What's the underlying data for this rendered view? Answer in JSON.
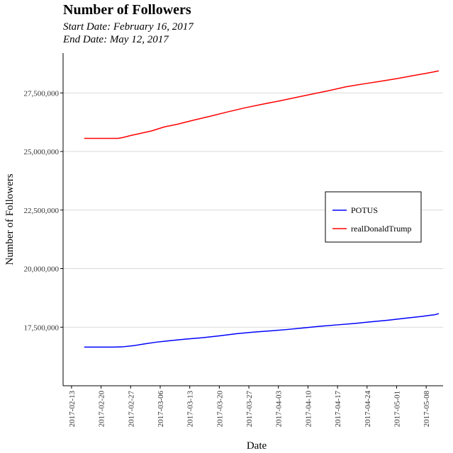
{
  "chart_data": {
    "type": "line",
    "title": "Number of Followers",
    "subtitle_lines": [
      "Start Date:  February 16, 2017",
      "End Date:  May 12, 2017"
    ],
    "xlabel": "Date",
    "ylabel": "Number of Followers",
    "x_domain": [
      "2017-02-11",
      "2017-05-12"
    ],
    "x_ticks": [
      "2017-02-13",
      "2017-02-20",
      "2017-02-27",
      "2017-03-06",
      "2017-03-13",
      "2017-03-20",
      "2017-03-27",
      "2017-04-03",
      "2017-04-10",
      "2017-04-17",
      "2017-04-24",
      "2017-05-01",
      "2017-05-08"
    ],
    "ylim": [
      15000000,
      29200000
    ],
    "y_ticks": [
      17500000,
      20000000,
      22500000,
      25000000,
      27500000
    ],
    "y_tick_labels": [
      "17,500,000",
      "20,000,000",
      "22,500,000",
      "25,000,000",
      "27,500,000"
    ],
    "grid": "horizontal",
    "legend_position": "right",
    "series": [
      {
        "name": "POTUS",
        "color": "#0000ff",
        "points": [
          [
            "2017-02-16",
            16650000
          ],
          [
            "2017-02-20",
            16650000
          ],
          [
            "2017-02-23",
            16650000
          ],
          [
            "2017-02-25",
            16660000
          ],
          [
            "2017-02-28",
            16720000
          ],
          [
            "2017-03-02",
            16780000
          ],
          [
            "2017-03-05",
            16860000
          ],
          [
            "2017-03-08",
            16920000
          ],
          [
            "2017-03-12",
            16990000
          ],
          [
            "2017-03-16",
            17050000
          ],
          [
            "2017-03-20",
            17130000
          ],
          [
            "2017-03-24",
            17220000
          ],
          [
            "2017-03-28",
            17290000
          ],
          [
            "2017-04-01",
            17340000
          ],
          [
            "2017-04-05",
            17400000
          ],
          [
            "2017-04-09",
            17470000
          ],
          [
            "2017-04-13",
            17540000
          ],
          [
            "2017-04-17",
            17600000
          ],
          [
            "2017-04-21",
            17660000
          ],
          [
            "2017-04-25",
            17730000
          ],
          [
            "2017-04-29",
            17800000
          ],
          [
            "2017-05-03",
            17880000
          ],
          [
            "2017-05-07",
            17960000
          ],
          [
            "2017-05-09",
            18010000
          ],
          [
            "2017-05-10",
            18030000
          ],
          [
            "2017-05-11",
            18080000
          ]
        ]
      },
      {
        "name": "realDonaldTrump",
        "color": "#ff0000",
        "points": [
          [
            "2017-02-16",
            25560000
          ],
          [
            "2017-02-20",
            25560000
          ],
          [
            "2017-02-24",
            25560000
          ],
          [
            "2017-02-25",
            25590000
          ],
          [
            "2017-02-27",
            25680000
          ],
          [
            "2017-03-01",
            25760000
          ],
          [
            "2017-03-04",
            25880000
          ],
          [
            "2017-03-07",
            26050000
          ],
          [
            "2017-03-10",
            26160000
          ],
          [
            "2017-03-14",
            26340000
          ],
          [
            "2017-03-18",
            26510000
          ],
          [
            "2017-03-22",
            26690000
          ],
          [
            "2017-03-26",
            26860000
          ],
          [
            "2017-03-30",
            27010000
          ],
          [
            "2017-04-03",
            27150000
          ],
          [
            "2017-04-07",
            27300000
          ],
          [
            "2017-04-11",
            27450000
          ],
          [
            "2017-04-15",
            27600000
          ],
          [
            "2017-04-19",
            27760000
          ],
          [
            "2017-04-23",
            27880000
          ],
          [
            "2017-04-27",
            27990000
          ],
          [
            "2017-05-01",
            28110000
          ],
          [
            "2017-05-05",
            28240000
          ],
          [
            "2017-05-09",
            28370000
          ],
          [
            "2017-05-11",
            28440000
          ]
        ]
      }
    ]
  }
}
